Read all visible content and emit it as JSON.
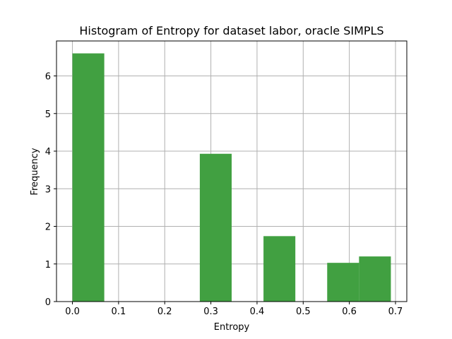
{
  "chart_data": {
    "type": "bar",
    "title": "Histogram of Entropy for dataset labor, oracle SIMPLS",
    "xlabel": "Entropy",
    "ylabel": "Frequency",
    "xlim": [
      -0.0345,
      0.7245
    ],
    "ylim": [
      0,
      6.93
    ],
    "grid": true,
    "bar_color": "#41a041",
    "xticks": [
      "0.0",
      "0.1",
      "0.2",
      "0.3",
      "0.4",
      "0.5",
      "0.6",
      "0.7"
    ],
    "xtick_values": [
      0.0,
      0.1,
      0.2,
      0.3,
      0.4,
      0.5,
      0.6,
      0.7
    ],
    "yticks": [
      "0",
      "1",
      "2",
      "3",
      "4",
      "5",
      "6"
    ],
    "ytick_values": [
      0,
      1,
      2,
      3,
      4,
      5,
      6
    ],
    "bins": [
      {
        "x_start": 0.0,
        "x_end": 0.069,
        "value": 6.6
      },
      {
        "x_start": 0.069,
        "x_end": 0.138,
        "value": 0
      },
      {
        "x_start": 0.138,
        "x_end": 0.207,
        "value": 0
      },
      {
        "x_start": 0.207,
        "x_end": 0.276,
        "value": 0
      },
      {
        "x_start": 0.276,
        "x_end": 0.345,
        "value": 3.93
      },
      {
        "x_start": 0.345,
        "x_end": 0.414,
        "value": 0
      },
      {
        "x_start": 0.414,
        "x_end": 0.483,
        "value": 1.74
      },
      {
        "x_start": 0.483,
        "x_end": 0.552,
        "value": 0
      },
      {
        "x_start": 0.552,
        "x_end": 0.621,
        "value": 1.03
      },
      {
        "x_start": 0.621,
        "x_end": 0.69,
        "value": 1.2
      }
    ]
  }
}
